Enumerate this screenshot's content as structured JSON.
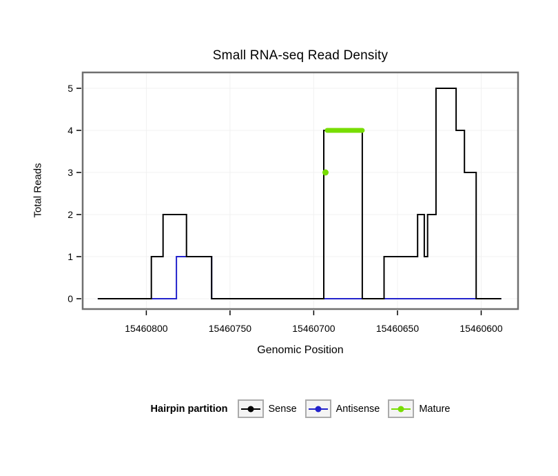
{
  "title": "Small RNA-seq Read Density",
  "axes": {
    "x_label": "Genomic Position",
    "y_label": "Total Reads"
  },
  "legend": {
    "title": "Hairpin partition",
    "items": [
      {
        "label": "Sense",
        "color": "#000000"
      },
      {
        "label": "Antisense",
        "color": "#2222CC"
      },
      {
        "label": "Mature",
        "color": "#77DD00"
      }
    ]
  },
  "chart_data": {
    "type": "line",
    "subtype": "step",
    "title": "Small RNA-seq Read Density",
    "xlabel": "Genomic Position",
    "ylabel": "Total Reads",
    "x_axis_reversed": true,
    "xlim": [
      15460838,
      15460578
    ],
    "ylim": [
      0,
      5
    ],
    "x_ticks": [
      15460800,
      15460750,
      15460700,
      15460650,
      15460600
    ],
    "y_ticks": [
      0,
      1,
      2,
      3,
      4,
      5
    ],
    "grid": "faint gray gridlines at ticks",
    "legend_position": "bottom",
    "panel_border_color": "#6F6F6F",
    "series": [
      {
        "name": "Sense",
        "color": "#000000",
        "style": "step",
        "points": [
          [
            15460829,
            0
          ],
          [
            15460797,
            1
          ],
          [
            15460790,
            2
          ],
          [
            15460776,
            1
          ],
          [
            15460761,
            0
          ],
          [
            15460694,
            4
          ],
          [
            15460671,
            0
          ],
          [
            15460658,
            1
          ],
          [
            15460638,
            2
          ],
          [
            15460634,
            1
          ],
          [
            15460632,
            2
          ],
          [
            15460627,
            5
          ],
          [
            15460615,
            4
          ],
          [
            15460610,
            3
          ],
          [
            15460603,
            0
          ],
          [
            15460588,
            0
          ]
        ]
      },
      {
        "name": "Antisense",
        "color": "#2222CC",
        "style": "step",
        "points": [
          [
            15460829,
            0
          ],
          [
            15460782,
            1
          ],
          [
            15460761,
            0
          ],
          [
            15460588,
            0
          ]
        ]
      },
      {
        "name": "Mature",
        "color": "#77DD00",
        "style": "segment+point",
        "segment": {
          "x_start": 15460692,
          "x_end": 15460671,
          "y": 4
        },
        "point": {
          "x": 15460693,
          "y": 3
        }
      }
    ]
  }
}
